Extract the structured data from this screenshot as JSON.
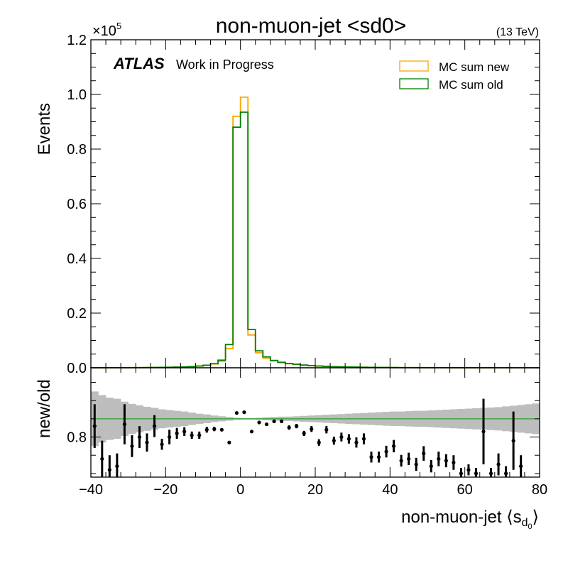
{
  "chart_data": [
    {
      "type": "line",
      "title": "non-muon-jet <sd0>",
      "energy_label": "(13 TeV)",
      "experiment": "ATLAS",
      "status": "Work in Progress",
      "ylabel": "Events",
      "y_multiplier": "×10",
      "y_multiplier_exp": "5",
      "xlim": [
        -40,
        80
      ],
      "ylim": [
        0,
        1.2
      ],
      "y_ticks": [
        "0.0",
        "0.2",
        "0.4",
        "0.6",
        "0.8",
        "1.0",
        "1.2"
      ],
      "legend_position": "top-right",
      "bin_edges": [
        -40,
        -38,
        -36,
        -34,
        -32,
        -30,
        -28,
        -26,
        -24,
        -22,
        -20,
        -18,
        -16,
        -14,
        -12,
        -10,
        -8,
        -6,
        -4,
        -2,
        0,
        2,
        4,
        6,
        8,
        10,
        12,
        14,
        16,
        18,
        20,
        22,
        24,
        26,
        28,
        30,
        32,
        34,
        36,
        38,
        40,
        42,
        44,
        46,
        48,
        50,
        52,
        54,
        56,
        58,
        60,
        62,
        64,
        66,
        68,
        70,
        72,
        74,
        76,
        78,
        80
      ],
      "series": [
        {
          "name": "MC sum new",
          "color": "#ffa500",
          "values": [
            0.0002,
            0.0002,
            0.0003,
            0.0003,
            0.0004,
            0.0005,
            0.0006,
            0.0008,
            0.001,
            0.0013,
            0.0017,
            0.0023,
            0.003,
            0.004,
            0.006,
            0.009,
            0.014,
            0.024,
            0.07,
            0.92,
            0.99,
            0.12,
            0.055,
            0.035,
            0.025,
            0.019,
            0.015,
            0.012,
            0.0095,
            0.0075,
            0.006,
            0.005,
            0.004,
            0.0033,
            0.0027,
            0.0022,
            0.0018,
            0.0015,
            0.0012,
            0.001,
            0.0008,
            0.0007,
            0.0006,
            0.0005,
            0.0004,
            0.00035,
            0.0003,
            0.00025,
            0.0002,
            0.00018,
            0.00015,
            0.00012,
            0.0001,
            9e-05,
            8e-05,
            7e-05,
            6e-05,
            5e-05,
            4e-05,
            3e-05
          ]
        },
        {
          "name": "MC sum old",
          "color": "#008000",
          "values": [
            0.0002,
            0.0002,
            0.0003,
            0.0004,
            0.0005,
            0.0006,
            0.0007,
            0.0009,
            0.0011,
            0.0015,
            0.0019,
            0.0025,
            0.0033,
            0.0045,
            0.0065,
            0.0095,
            0.015,
            0.028,
            0.085,
            0.88,
            0.935,
            0.14,
            0.062,
            0.04,
            0.027,
            0.02,
            0.016,
            0.013,
            0.01,
            0.008,
            0.0065,
            0.0053,
            0.0043,
            0.0035,
            0.0029,
            0.0024,
            0.002,
            0.0016,
            0.0013,
            0.0011,
            0.0009,
            0.0007,
            0.0006,
            0.0005,
            0.00045,
            0.00038,
            0.00032,
            0.00027,
            0.00022,
            0.00019,
            0.00016,
            0.00013,
            0.00011,
            0.0001,
            9e-05,
            8e-05,
            7e-05,
            6e-05,
            5e-05,
            4e-05
          ]
        }
      ]
    },
    {
      "type": "scatter",
      "ylabel": "new/old",
      "xlabel_main": "non-muon-jet ⟨s",
      "xlabel_sub": "d",
      "xlabel_subsub": "0",
      "xlabel_close": "⟩",
      "xlim": [
        -40,
        80
      ],
      "ylim": [
        0.69,
        0.99
      ],
      "y_ticks": [
        "0.8"
      ],
      "x_ticks": [
        "−40",
        "−20",
        "0",
        "20",
        "40",
        "60",
        "80"
      ],
      "reference_line": 0.85,
      "reference_color": "#2ca02c",
      "band_color": "#bdbdbd",
      "bin_edges": [
        -40,
        -38,
        -36,
        -34,
        -32,
        -30,
        -28,
        -26,
        -24,
        -22,
        -20,
        -18,
        -16,
        -14,
        -12,
        -10,
        -8,
        -6,
        -4,
        -2,
        0,
        2,
        4,
        6,
        8,
        10,
        12,
        14,
        16,
        18,
        20,
        22,
        24,
        26,
        28,
        30,
        32,
        34,
        36,
        38,
        40,
        42,
        44,
        46,
        48,
        50,
        52,
        54,
        56,
        58,
        60,
        62,
        64,
        66,
        68,
        70,
        72,
        74,
        76,
        78,
        80
      ],
      "band_halfwidth": [
        0.075,
        0.065,
        0.058,
        0.055,
        0.047,
        0.041,
        0.037,
        0.033,
        0.03,
        0.026,
        0.024,
        0.022,
        0.02,
        0.017,
        0.014,
        0.012,
        0.009,
        0.007,
        0.005,
        0.003,
        0.002,
        0.002,
        0.003,
        0.004,
        0.005,
        0.006,
        0.006,
        0.007,
        0.008,
        0.009,
        0.01,
        0.011,
        0.012,
        0.013,
        0.014,
        0.015,
        0.016,
        0.017,
        0.018,
        0.019,
        0.02,
        0.02,
        0.021,
        0.022,
        0.022,
        0.023,
        0.024,
        0.025,
        0.026,
        0.027,
        0.028,
        0.029,
        0.03,
        0.031,
        0.032,
        0.034,
        0.036,
        0.038,
        0.04,
        0.042
      ],
      "points": [
        {
          "x": -39,
          "y": 0.83,
          "err": 0.06
        },
        {
          "x": -37,
          "y": 0.74,
          "err": 0.05
        },
        {
          "x": -35,
          "y": 0.71,
          "err": 0.04
        },
        {
          "x": -33,
          "y": 0.72,
          "err": 0.035
        },
        {
          "x": -31,
          "y": 0.835,
          "err": 0.055
        },
        {
          "x": -29,
          "y": 0.775,
          "err": 0.03
        },
        {
          "x": -27,
          "y": 0.8,
          "err": 0.03
        },
        {
          "x": -25,
          "y": 0.785,
          "err": 0.025
        },
        {
          "x": -23,
          "y": 0.83,
          "err": 0.03
        },
        {
          "x": -21,
          "y": 0.78,
          "err": 0.015
        },
        {
          "x": -19,
          "y": 0.8,
          "err": 0.02
        },
        {
          "x": -17,
          "y": 0.81,
          "err": 0.015
        },
        {
          "x": -15,
          "y": 0.815,
          "err": 0.012
        },
        {
          "x": -13,
          "y": 0.805,
          "err": 0.01
        },
        {
          "x": -11,
          "y": 0.805,
          "err": 0.01
        },
        {
          "x": -9,
          "y": 0.82,
          "err": 0.008
        },
        {
          "x": -7,
          "y": 0.822,
          "err": 0.006
        },
        {
          "x": -5,
          "y": 0.82,
          "err": 0.004
        },
        {
          "x": -3,
          "y": 0.785,
          "err": 0.002
        },
        {
          "x": -1,
          "y": 0.866,
          "err": 0.001
        },
        {
          "x": 1,
          "y": 0.868,
          "err": 0.001
        },
        {
          "x": 3,
          "y": 0.815,
          "err": 0.002
        },
        {
          "x": 5,
          "y": 0.84,
          "err": 0.003
        },
        {
          "x": 7,
          "y": 0.835,
          "err": 0.004
        },
        {
          "x": 9,
          "y": 0.843,
          "err": 0.005
        },
        {
          "x": 11,
          "y": 0.843,
          "err": 0.005
        },
        {
          "x": 13,
          "y": 0.826,
          "err": 0.006
        },
        {
          "x": 15,
          "y": 0.83,
          "err": 0.006
        },
        {
          "x": 17,
          "y": 0.81,
          "err": 0.007
        },
        {
          "x": 19,
          "y": 0.822,
          "err": 0.008
        },
        {
          "x": 21,
          "y": 0.785,
          "err": 0.009
        },
        {
          "x": 23,
          "y": 0.82,
          "err": 0.01
        },
        {
          "x": 25,
          "y": 0.79,
          "err": 0.011
        },
        {
          "x": 27,
          "y": 0.8,
          "err": 0.012
        },
        {
          "x": 29,
          "y": 0.795,
          "err": 0.013
        },
        {
          "x": 31,
          "y": 0.785,
          "err": 0.014
        },
        {
          "x": 33,
          "y": 0.795,
          "err": 0.015
        },
        {
          "x": 35,
          "y": 0.745,
          "err": 0.015
        },
        {
          "x": 37,
          "y": 0.745,
          "err": 0.015
        },
        {
          "x": 39,
          "y": 0.76,
          "err": 0.016
        },
        {
          "x": 41,
          "y": 0.775,
          "err": 0.017
        },
        {
          "x": 43,
          "y": 0.735,
          "err": 0.016
        },
        {
          "x": 45,
          "y": 0.74,
          "err": 0.017
        },
        {
          "x": 47,
          "y": 0.725,
          "err": 0.018
        },
        {
          "x": 49,
          "y": 0.755,
          "err": 0.02
        },
        {
          "x": 51,
          "y": 0.72,
          "err": 0.017
        },
        {
          "x": 53,
          "y": 0.74,
          "err": 0.02
        },
        {
          "x": 55,
          "y": 0.735,
          "err": 0.018
        },
        {
          "x": 57,
          "y": 0.73,
          "err": 0.02
        },
        {
          "x": 59,
          "y": 0.7,
          "err": 0.015
        },
        {
          "x": 61,
          "y": 0.71,
          "err": 0.015
        },
        {
          "x": 63,
          "y": 0.7,
          "err": 0.015
        },
        {
          "x": 65,
          "y": 0.815,
          "err": 0.09
        },
        {
          "x": 67,
          "y": 0.7,
          "err": 0.015
        },
        {
          "x": 69,
          "y": 0.725,
          "err": 0.03
        },
        {
          "x": 71,
          "y": 0.7,
          "err": 0.02
        },
        {
          "x": 73,
          "y": 0.79,
          "err": 0.08
        },
        {
          "x": 75,
          "y": 0.72,
          "err": 0.03
        }
      ]
    }
  ]
}
